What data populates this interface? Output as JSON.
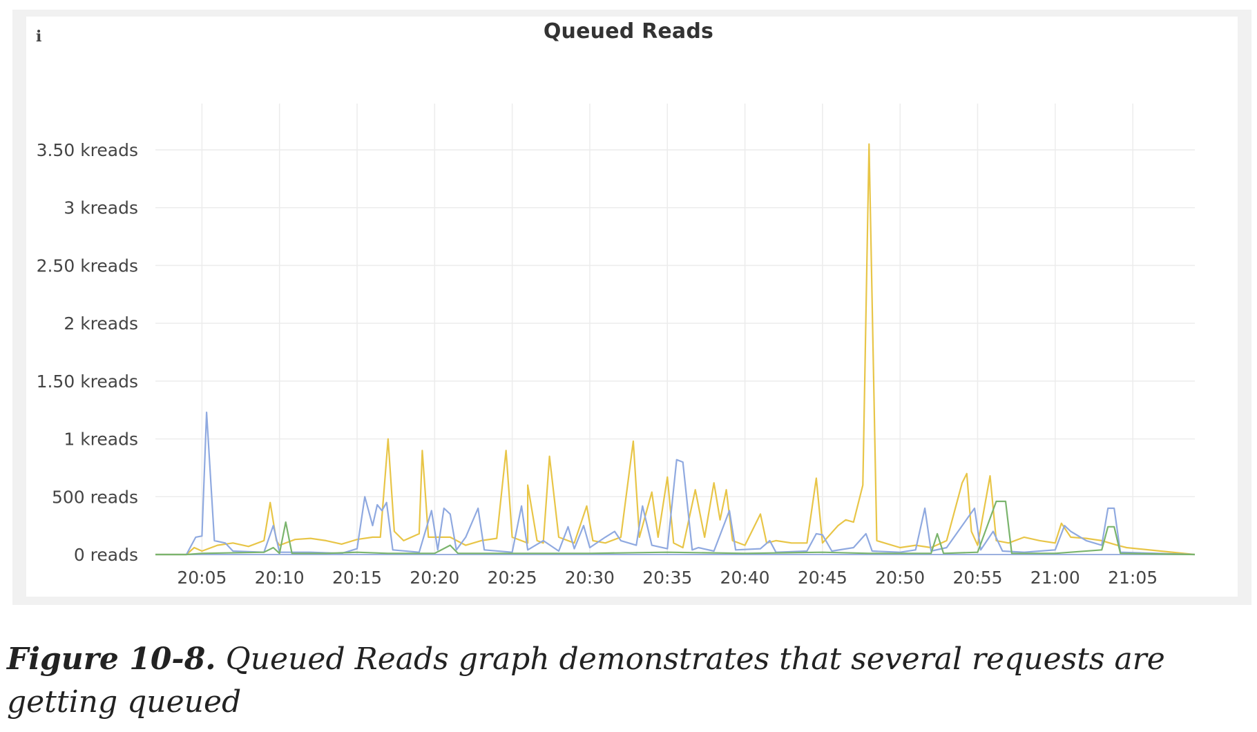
{
  "panel": {
    "info_icon": "i"
  },
  "chart_data": {
    "type": "line",
    "title": "Queued Reads",
    "xlabel": "",
    "ylabel": "",
    "x_ticks": [
      "20:05",
      "20:10",
      "20:15",
      "20:20",
      "20:25",
      "20:30",
      "20:35",
      "20:40",
      "20:45",
      "20:50",
      "20:55",
      "21:00",
      "21:05"
    ],
    "y_ticks": [
      {
        "value": 0,
        "label": "0 reads"
      },
      {
        "value": 500,
        "label": "500 reads"
      },
      {
        "value": 1000,
        "label": "1 kreads"
      },
      {
        "value": 1500,
        "label": "1.50 kreads"
      },
      {
        "value": 2000,
        "label": "2 kreads"
      },
      {
        "value": 2500,
        "label": "2.50 kreads"
      },
      {
        "value": 3000,
        "label": "3 kreads"
      },
      {
        "value": 3500,
        "label": "3.50 kreads"
      }
    ],
    "xlim": [
      "20:02",
      "21:09"
    ],
    "ylim": [
      0,
      3500
    ],
    "grid": true,
    "legend": "none",
    "series": [
      {
        "color": "#e8c547",
        "points": [
          [
            "20:02",
            0
          ],
          [
            "20:04",
            0
          ],
          [
            "20:04.5",
            60
          ],
          [
            "20:05",
            30
          ],
          [
            "20:06",
            80
          ],
          [
            "20:07",
            100
          ],
          [
            "20:08",
            70
          ],
          [
            "20:09",
            120
          ],
          [
            "20:09.4",
            450
          ],
          [
            "20:09.8",
            120
          ],
          [
            "20:10",
            80
          ],
          [
            "20:11",
            130
          ],
          [
            "20:12",
            140
          ],
          [
            "20:13",
            120
          ],
          [
            "20:14",
            90
          ],
          [
            "20:15",
            130
          ],
          [
            "20:16",
            150
          ],
          [
            "20:16.5",
            150
          ],
          [
            "20:17",
            1000
          ],
          [
            "20:17.4",
            200
          ],
          [
            "20:18",
            120
          ],
          [
            "20:19",
            180
          ],
          [
            "20:19.2",
            900
          ],
          [
            "20:19.6",
            150
          ],
          [
            "20:20",
            150
          ],
          [
            "20:21",
            150
          ],
          [
            "20:22",
            80
          ],
          [
            "20:23",
            120
          ],
          [
            "20:24",
            140
          ],
          [
            "20:24.6",
            900
          ],
          [
            "20:25",
            150
          ],
          [
            "20:26",
            100
          ],
          [
            "20:26",
            600
          ],
          [
            "20:26.6",
            120
          ],
          [
            "20:27",
            100
          ],
          [
            "20:27.4",
            850
          ],
          [
            "20:28",
            150
          ],
          [
            "20:29",
            100
          ],
          [
            "20:29.8",
            420
          ],
          [
            "20:30.2",
            120
          ],
          [
            "20:31",
            100
          ],
          [
            "20:32",
            150
          ],
          [
            "20:32.8",
            980
          ],
          [
            "20:33.2",
            150
          ],
          [
            "20:34",
            540
          ],
          [
            "20:34.4",
            150
          ],
          [
            "20:35",
            670
          ],
          [
            "20:35.4",
            100
          ],
          [
            "20:36",
            60
          ],
          [
            "20:36.8",
            560
          ],
          [
            "20:37.4",
            150
          ],
          [
            "20:38",
            620
          ],
          [
            "20:38.4",
            300
          ],
          [
            "20:38.8",
            560
          ],
          [
            "20:39.2",
            120
          ],
          [
            "20:40",
            80
          ],
          [
            "20:41",
            350
          ],
          [
            "20:41.4",
            100
          ],
          [
            "20:42",
            120
          ],
          [
            "20:43",
            100
          ],
          [
            "20:44",
            100
          ],
          [
            "20:44.6",
            660
          ],
          [
            "20:45",
            100
          ],
          [
            "20:46",
            250
          ],
          [
            "20:46.5",
            300
          ],
          [
            "20:47",
            280
          ],
          [
            "20:47.6",
            600
          ],
          [
            "20:48",
            3550
          ],
          [
            "20:48.5",
            120
          ],
          [
            "20:49",
            100
          ],
          [
            "20:50",
            60
          ],
          [
            "20:51",
            80
          ],
          [
            "20:52",
            60
          ],
          [
            "20:53",
            120
          ],
          [
            "20:54",
            620
          ],
          [
            "20:54.3",
            700
          ],
          [
            "20:54.6",
            200
          ],
          [
            "20:55",
            80
          ],
          [
            "20:55.8",
            680
          ],
          [
            "20:56.2",
            120
          ],
          [
            "20:57",
            100
          ],
          [
            "20:58",
            150
          ],
          [
            "20:59",
            120
          ],
          [
            "21:00",
            100
          ],
          [
            "21:00.4",
            270
          ],
          [
            "21:01",
            150
          ],
          [
            "21:02",
            140
          ],
          [
            "21:03",
            120
          ],
          [
            "21:04",
            80
          ],
          [
            "21:04.6",
            60
          ],
          [
            "21:09",
            0
          ]
        ]
      },
      {
        "color": "#8fa9e0",
        "points": [
          [
            "20:02",
            0
          ],
          [
            "20:04",
            0
          ],
          [
            "20:04.6",
            150
          ],
          [
            "20:05",
            160
          ],
          [
            "20:05.3",
            1230
          ],
          [
            "20:05.8",
            120
          ],
          [
            "20:06.5",
            100
          ],
          [
            "20:07",
            30
          ],
          [
            "20:09",
            20
          ],
          [
            "20:09.6",
            250
          ],
          [
            "20:10",
            20
          ],
          [
            "20:12",
            20
          ],
          [
            "20:14",
            10
          ],
          [
            "20:15",
            50
          ],
          [
            "20:15.5",
            500
          ],
          [
            "20:16",
            250
          ],
          [
            "20:16.3",
            430
          ],
          [
            "20:16.6",
            380
          ],
          [
            "20:16.9",
            450
          ],
          [
            "20:17.3",
            40
          ],
          [
            "20:19",
            20
          ],
          [
            "20:19.8",
            380
          ],
          [
            "20:20.2",
            40
          ],
          [
            "20:20.6",
            400
          ],
          [
            "20:21",
            350
          ],
          [
            "20:21.4",
            40
          ],
          [
            "20:22",
            150
          ],
          [
            "20:22.8",
            400
          ],
          [
            "20:23.2",
            40
          ],
          [
            "20:25",
            20
          ],
          [
            "20:25.6",
            420
          ],
          [
            "20:26",
            40
          ],
          [
            "20:27",
            120
          ],
          [
            "20:28",
            30
          ],
          [
            "20:28.6",
            240
          ],
          [
            "20:29",
            50
          ],
          [
            "20:29.6",
            250
          ],
          [
            "20:30",
            60
          ],
          [
            "20:31",
            150
          ],
          [
            "20:31.6",
            200
          ],
          [
            "20:32",
            120
          ],
          [
            "20:33",
            80
          ],
          [
            "20:33.4",
            420
          ],
          [
            "20:34",
            80
          ],
          [
            "20:35",
            50
          ],
          [
            "20:35.6",
            820
          ],
          [
            "20:36",
            800
          ],
          [
            "20:36.6",
            40
          ],
          [
            "20:37",
            60
          ],
          [
            "20:38",
            30
          ],
          [
            "20:39",
            380
          ],
          [
            "20:39.4",
            40
          ],
          [
            "20:41",
            50
          ],
          [
            "20:41.6",
            120
          ],
          [
            "20:42",
            20
          ],
          [
            "20:44",
            30
          ],
          [
            "20:44.6",
            180
          ],
          [
            "20:45",
            170
          ],
          [
            "20:45.6",
            30
          ],
          [
            "20:47",
            60
          ],
          [
            "20:47.8",
            180
          ],
          [
            "20:48.2",
            30
          ],
          [
            "20:50",
            20
          ],
          [
            "20:51",
            40
          ],
          [
            "20:51.6",
            400
          ],
          [
            "20:52",
            30
          ],
          [
            "20:53",
            60
          ],
          [
            "20:54.8",
            400
          ],
          [
            "20:55.2",
            40
          ],
          [
            "20:56",
            200
          ],
          [
            "20:56.6",
            30
          ],
          [
            "20:58",
            20
          ],
          [
            "21:00",
            40
          ],
          [
            "21:00.6",
            250
          ],
          [
            "21:01",
            200
          ],
          [
            "21:02",
            120
          ],
          [
            "21:03",
            80
          ],
          [
            "21:03.4",
            400
          ],
          [
            "21:03.8",
            400
          ],
          [
            "21:04.2",
            20
          ],
          [
            "21:09",
            0
          ]
        ]
      },
      {
        "color": "#7ab46c",
        "points": [
          [
            "20:02",
            0
          ],
          [
            "20:04",
            0
          ],
          [
            "20:05",
            10
          ],
          [
            "20:09",
            20
          ],
          [
            "20:09.6",
            60
          ],
          [
            "20:10",
            10
          ],
          [
            "20:10.4",
            280
          ],
          [
            "20:10.8",
            10
          ],
          [
            "20:13",
            10
          ],
          [
            "20:15",
            20
          ],
          [
            "20:17",
            10
          ],
          [
            "20:20",
            10
          ],
          [
            "20:21",
            80
          ],
          [
            "20:21.5",
            10
          ],
          [
            "20:25",
            10
          ],
          [
            "20:30",
            10
          ],
          [
            "20:35",
            20
          ],
          [
            "20:40",
            10
          ],
          [
            "20:45",
            20
          ],
          [
            "20:48",
            10
          ],
          [
            "20:52",
            10
          ],
          [
            "20:52.4",
            180
          ],
          [
            "20:52.8",
            10
          ],
          [
            "20:55",
            20
          ],
          [
            "20:56.2",
            460
          ],
          [
            "20:56.8",
            460
          ],
          [
            "20:57.2",
            10
          ],
          [
            "21:00",
            10
          ],
          [
            "21:03",
            40
          ],
          [
            "21:03.4",
            240
          ],
          [
            "21:03.8",
            240
          ],
          [
            "21:04.2",
            10
          ],
          [
            "21:09",
            0
          ]
        ]
      }
    ]
  },
  "caption": {
    "lead": "Figure 10-8.",
    "text": "Queued Reads graph demonstrates that several requests are getting queued"
  }
}
